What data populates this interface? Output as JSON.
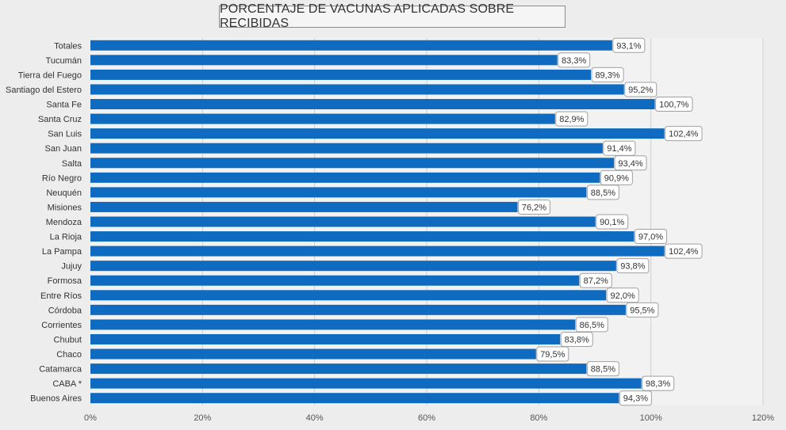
{
  "chart_data": {
    "type": "bar",
    "orientation": "horizontal",
    "title": "PORCENTAJE DE VACUNAS APLICADAS SOBRE RECIBIDAS",
    "xlabel": "",
    "ylabel": "",
    "xlim": [
      0,
      120
    ],
    "x_ticks": [
      0,
      20,
      40,
      60,
      80,
      100,
      120
    ],
    "x_tick_labels": [
      "0%",
      "20%",
      "40%",
      "60%",
      "80%",
      "100%",
      "120%"
    ],
    "grid": true,
    "bar_color": "#0e6bbf",
    "categories": [
      "Totales",
      "Tucumán",
      "Tierra del Fuego",
      "Santiago del Estero",
      "Santa Fe",
      "Santa Cruz",
      "San Luis",
      "San Juan",
      "Salta",
      "Río Negro",
      "Neuquén",
      "Misiones",
      "Mendoza",
      "La Rioja",
      "La Pampa",
      "Jujuy",
      "Formosa",
      "Entre Ríos",
      "Córdoba",
      "Corrientes",
      "Chubut",
      "Chaco",
      "Catamarca",
      "CABA *",
      "Buenos Aires"
    ],
    "values": [
      93.1,
      83.3,
      89.3,
      95.2,
      100.7,
      82.9,
      102.4,
      91.4,
      93.4,
      90.9,
      88.5,
      76.2,
      90.1,
      97.0,
      102.4,
      93.8,
      87.2,
      92.0,
      95.5,
      86.5,
      83.8,
      79.5,
      88.5,
      98.3,
      94.3
    ],
    "data_labels": [
      "93,1%",
      "83,3%",
      "89,3%",
      "95,2%",
      "100,7%",
      "82,9%",
      "102,4%",
      "91,4%",
      "93,4%",
      "90,9%",
      "88,5%",
      "76,2%",
      "90,1%",
      "97,0%",
      "102,4%",
      "93,8%",
      "87,2%",
      "92,0%",
      "95,5%",
      "86,5%",
      "83,8%",
      "79,5%",
      "88,5%",
      "98,3%",
      "94,3%"
    ]
  }
}
